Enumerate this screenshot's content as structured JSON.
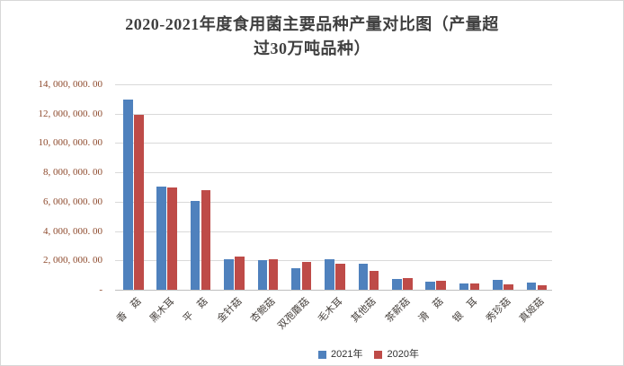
{
  "chart_data": {
    "type": "bar",
    "title": "2020-2021年度食用菌主要品种产量对比图（产量超过30万吨品种）",
    "title_line1": "2020-2021年度食用菌主要品种产量对比图（产量超",
    "title_line2": "过30万吨品种）",
    "categories": [
      "香　菇",
      "黑木耳",
      "平　菇",
      "金针菇",
      "杏鲍菇",
      "双孢蘑菇",
      "毛木耳",
      "其他菇",
      "茶薪菇",
      "滑　菇",
      "银　耳",
      "秀珍菇",
      "真姬菇"
    ],
    "series": [
      {
        "name": "2021年",
        "color": "#4f81bd",
        "values": [
          12950000,
          7050000,
          6080000,
          2100000,
          2000000,
          1470000,
          2100000,
          1750000,
          750000,
          570000,
          440000,
          650000,
          460000
        ]
      },
      {
        "name": "2020年",
        "color": "#be4b48",
        "values": [
          11900000,
          7000000,
          6800000,
          2250000,
          2050000,
          1920000,
          1780000,
          1300000,
          800000,
          600000,
          440000,
          360000,
          300000
        ]
      }
    ],
    "y_ticks": [
      {
        "value": 14000000,
        "label": "14, 000, 000. 00"
      },
      {
        "value": 12000000,
        "label": "12, 000, 000. 00"
      },
      {
        "value": 10000000,
        "label": "10, 000, 000. 00"
      },
      {
        "value": 8000000,
        "label": "8, 000, 000. 00"
      },
      {
        "value": 6000000,
        "label": "6, 000, 000. 00"
      },
      {
        "value": 4000000,
        "label": "4, 000, 000. 00"
      },
      {
        "value": 2000000,
        "label": "2, 000, 000. 00"
      },
      {
        "value": 0,
        "label": "-"
      }
    ],
    "ylim": [
      0,
      14000000
    ],
    "grid": "horizontal",
    "legend_position": "bottom",
    "colors": {
      "gridline": "#d9d9d9",
      "axis_line": "#bfbfbf",
      "title_text": "#3f3f3f",
      "y_label_text": "#8e4a2d",
      "x_label_text": "#46403c",
      "frame_border": "#d8d8d8"
    }
  }
}
